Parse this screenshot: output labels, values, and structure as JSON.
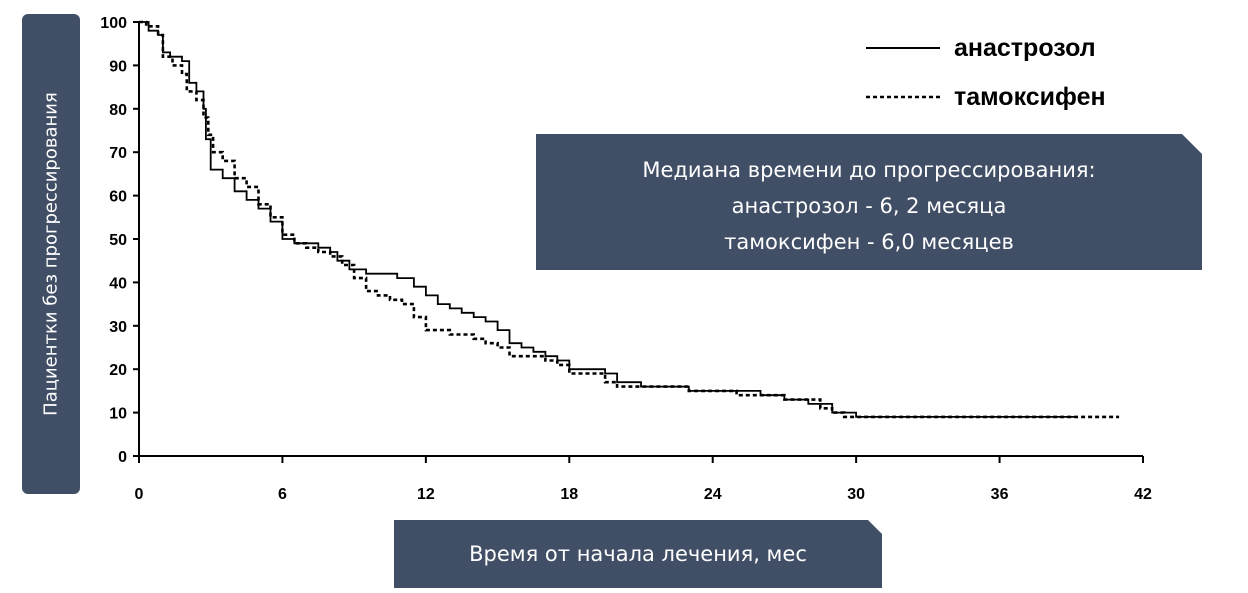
{
  "chart_data": {
    "type": "line",
    "xlabel": "Время от начала лечения, мес",
    "ylabel": "Пациентки без прогрессирования",
    "xlim": [
      0,
      42
    ],
    "ylim": [
      0,
      100
    ],
    "xticks": [
      0,
      6,
      12,
      18,
      24,
      30,
      36,
      42
    ],
    "yticks": [
      0,
      10,
      20,
      30,
      40,
      50,
      60,
      70,
      80,
      90,
      100
    ],
    "grid": false,
    "legend_position": "top-right",
    "series": [
      {
        "name": "анастрозол",
        "line_style": "solid",
        "color": "#000000",
        "x": [
          0,
          0.4,
          0.8,
          1.0,
          1.3,
          1.8,
          2.1,
          2.4,
          2.7,
          2.8,
          3.0,
          3.5,
          4.0,
          4.5,
          5.0,
          5.5,
          6.0,
          6.5,
          7.0,
          7.5,
          8.0,
          8.3,
          8.8,
          9.5,
          10.0,
          10.8,
          11.5,
          12.0,
          12.5,
          13.0,
          13.5,
          14.0,
          14.5,
          15.0,
          15.5,
          16.0,
          16.5,
          17.0,
          17.5,
          18.0,
          18.5,
          19.0,
          19.5,
          20.0,
          21.0,
          22.0,
          23.0,
          24.0,
          25.0,
          26.0,
          27.0,
          28.0,
          28.5,
          29.0,
          29.5,
          30.0,
          32.0,
          34.0,
          36.0,
          38.0,
          39.2
        ],
        "y": [
          100,
          98,
          97,
          93,
          92,
          91,
          86,
          84,
          80,
          73,
          66,
          64,
          61,
          59,
          57,
          54,
          50,
          49,
          49,
          48,
          47,
          45,
          43,
          42,
          42,
          41,
          39,
          37,
          35,
          34,
          33,
          32,
          31,
          29,
          26,
          25,
          24,
          23,
          22,
          20,
          20,
          20,
          19,
          17,
          16,
          16,
          15,
          15,
          15,
          14,
          13,
          12,
          12,
          10,
          10,
          9,
          9,
          9,
          9,
          9,
          9
        ]
      },
      {
        "name": "тамоксифен",
        "line_style": "dashed",
        "color": "#000000",
        "x": [
          0,
          0.3,
          0.8,
          1.0,
          1.4,
          1.8,
          2.0,
          2.4,
          2.7,
          2.9,
          3.1,
          3.5,
          4.0,
          4.5,
          5.0,
          5.5,
          6.0,
          6.5,
          7.0,
          7.5,
          8.0,
          8.5,
          9.0,
          9.5,
          10.0,
          10.5,
          11.0,
          11.5,
          12.0,
          12.5,
          13.0,
          13.5,
          14.0,
          14.5,
          15.0,
          15.5,
          16.0,
          16.5,
          17.0,
          17.5,
          18.0,
          18.5,
          19.0,
          19.5,
          20.0,
          21.0,
          22.0,
          23.0,
          24.0,
          25.0,
          26.0,
          27.0,
          28.0,
          28.5,
          29.0,
          29.5,
          30.0,
          32.0,
          34.0,
          36.0,
          38.0,
          40.0,
          41.0
        ],
        "y": [
          100,
          99,
          97,
          92,
          90,
          88,
          84,
          82,
          78,
          74,
          70,
          68,
          64,
          62,
          58,
          55,
          51,
          49,
          48,
          47,
          46,
          44,
          41,
          38,
          37,
          36,
          35,
          32,
          29,
          29,
          28,
          28,
          27,
          26,
          25,
          23,
          23,
          23,
          22,
          21,
          19,
          19,
          19,
          17,
          16,
          16,
          16,
          15,
          15,
          14,
          14,
          13,
          13,
          11,
          10,
          9,
          9,
          9,
          9,
          9,
          9,
          9,
          9
        ]
      }
    ],
    "annotation": {
      "lines": [
        "Медиана времени до прогрессирования:",
        "анастрозол - 6, 2 месяца",
        "тамоксифен - 6,0 месяцев"
      ]
    }
  }
}
